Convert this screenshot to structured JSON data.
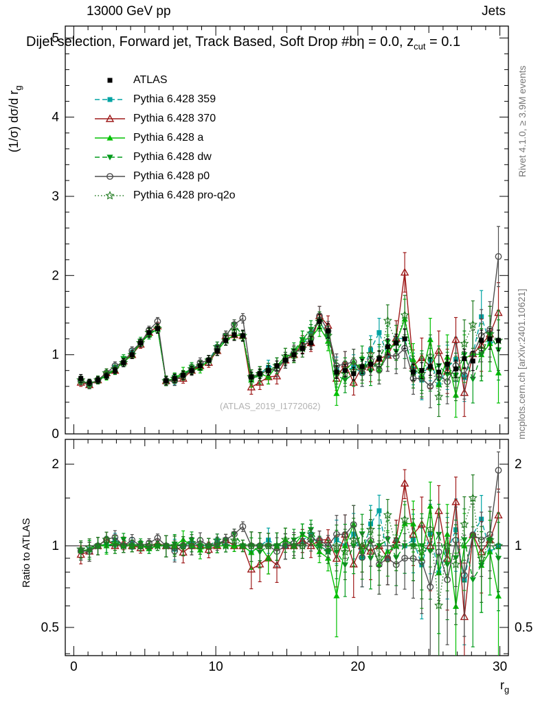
{
  "texts": {
    "beam": "13000 GeV pp",
    "process": "Jets",
    "title": "Dijet selection, Forward jet, Track Based, Soft Drop #bη = 0.0, z",
    "title_subscript": "cut",
    "title_after": " = 0.1",
    "watermark": "(ATLAS_2019_I1772062)",
    "rivet": "Rivet 4.1.0, ≥ 3.9M events",
    "mcplots": "mcplots.cern.ch [arXiv:2401.10621]",
    "ylabel_prefix": "(1/σ) dσ/d r",
    "ylabel_sub": "g",
    "ylabel_ratio": "Ratio to ATLAS",
    "xlabel": "r",
    "xlabel_sub": "g"
  },
  "chart_data": {
    "type": "line",
    "title": "Dijet selection, Forward jet, Track Based, Soft Drop beta = 0.0, zcut = 0.1",
    "xlabel": "rg",
    "ylabel": "(1/sigma) dsigma/d rg",
    "ratio_label": "Ratio to ATLAS",
    "legend_position": "top-left",
    "axes": {
      "x": {
        "min": -0.6,
        "max": 30.6,
        "major_ticks": [
          0,
          10,
          20,
          30
        ],
        "medium_every": 5,
        "minor_every": 1
      },
      "y_main": {
        "min": 0,
        "max": 5.15,
        "major_ticks": [
          0,
          1,
          2,
          3,
          4,
          5
        ],
        "minor_step": 0.2
      },
      "y_ratio": {
        "scale": "log",
        "major_ticks": [
          0.5,
          1,
          2
        ],
        "minor_ticks": [
          0.4,
          0.6,
          0.7,
          0.8,
          0.9,
          1.5
        ],
        "min": 0.38,
        "max": 2.47
      }
    },
    "x": [
      0.5,
      1.1,
      1.7,
      2.3,
      2.9,
      3.5,
      4.1,
      4.7,
      5.3,
      5.9,
      6.5,
      7.1,
      7.7,
      8.3,
      8.9,
      9.5,
      10.1,
      10.7,
      11.3,
      11.9,
      12.5,
      13.1,
      13.7,
      14.3,
      14.9,
      15.5,
      16.1,
      16.7,
      17.3,
      17.9,
      18.5,
      19.1,
      19.7,
      20.3,
      20.9,
      21.5,
      22.1,
      22.7,
      23.3,
      23.9,
      24.5,
      25.1,
      25.7,
      26.3,
      26.9,
      27.5,
      28.1,
      28.7,
      29.3,
      29.9
    ],
    "mc_err": [
      0.05,
      0.05,
      0.05,
      0.05,
      0.05,
      0.05,
      0.05,
      0.05,
      0.05,
      0.05,
      0.06,
      0.06,
      0.06,
      0.06,
      0.06,
      0.06,
      0.06,
      0.06,
      0.06,
      0.06,
      0.09,
      0.09,
      0.09,
      0.1,
      0.1,
      0.1,
      0.11,
      0.11,
      0.12,
      0.12,
      0.15,
      0.16,
      0.16,
      0.17,
      0.18,
      0.18,
      0.2,
      0.22,
      0.25,
      0.2,
      0.25,
      0.27,
      0.25,
      0.28,
      0.28,
      0.3,
      0.3,
      0.33,
      0.35,
      0.38
    ],
    "series": [
      {
        "key": "atlas",
        "name": "ATLAS",
        "color": "#000000",
        "marker": "square",
        "line": "none",
        "values": [
          0.7,
          0.65,
          0.68,
          0.73,
          0.8,
          0.9,
          1.0,
          1.15,
          1.28,
          1.33,
          0.67,
          0.7,
          0.74,
          0.8,
          0.86,
          0.93,
          1.05,
          1.18,
          1.25,
          1.24,
          0.72,
          0.76,
          0.8,
          0.86,
          0.93,
          1.0,
          1.08,
          1.15,
          1.42,
          1.3,
          0.78,
          0.8,
          0.76,
          0.85,
          0.88,
          0.95,
          1.1,
          1.15,
          1.2,
          0.78,
          0.8,
          0.85,
          0.78,
          0.88,
          0.82,
          0.95,
          0.92,
          1.18,
          1.2,
          1.18
        ],
        "err": [
          0.05,
          0.04,
          0.04,
          0.04,
          0.04,
          0.05,
          0.05,
          0.05,
          0.06,
          0.06,
          0.05,
          0.05,
          0.05,
          0.05,
          0.05,
          0.06,
          0.06,
          0.06,
          0.07,
          0.07,
          0.06,
          0.06,
          0.06,
          0.06,
          0.07,
          0.07,
          0.07,
          0.08,
          0.09,
          0.09,
          0.08,
          0.08,
          0.08,
          0.09,
          0.09,
          0.1,
          0.1,
          0.11,
          0.12,
          0.1,
          0.1,
          0.11,
          0.1,
          0.11,
          0.11,
          0.12,
          0.12,
          0.13,
          0.13,
          0.13
        ]
      },
      {
        "key": "py359",
        "name": "Pythia 6.428 359",
        "color": "#00a3a3",
        "marker": "square",
        "line": "dashed",
        "values": [
          0.67,
          0.63,
          0.68,
          0.74,
          0.84,
          0.9,
          1.02,
          1.15,
          1.25,
          1.33,
          0.67,
          0.68,
          0.74,
          0.82,
          0.86,
          0.93,
          1.1,
          1.18,
          1.25,
          1.24,
          0.68,
          0.76,
          0.84,
          0.86,
          0.93,
          1.0,
          1.13,
          1.27,
          1.42,
          1.24,
          0.82,
          0.8,
          0.84,
          0.77,
          1.06,
          1.28,
          0.99,
          1.21,
          1.2,
          0.82,
          0.68,
          0.94,
          0.62,
          0.84,
          0.94,
          0.71,
          1.01,
          1.48,
          1.14,
          1.18
        ]
      },
      {
        "key": "py370",
        "name": "Pythia 6.428 370",
        "color": "#9e1a1a",
        "marker": "triangle-up-open",
        "line": "solid",
        "values": [
          0.65,
          0.62,
          0.68,
          0.77,
          0.8,
          0.92,
          1.0,
          1.13,
          1.28,
          1.36,
          0.67,
          0.7,
          0.7,
          0.8,
          0.86,
          0.9,
          1.05,
          1.24,
          1.25,
          1.24,
          0.59,
          0.65,
          0.72,
          0.73,
          0.93,
          1.0,
          1.13,
          1.15,
          1.49,
          1.37,
          0.7,
          0.88,
          0.65,
          0.85,
          0.84,
          0.95,
          0.99,
          1.21,
          2.04,
          0.86,
          0.96,
          0.85,
          1.05,
          0.79,
          1.19,
          0.52,
          1.01,
          1.12,
          1.26,
          1.53
        ]
      },
      {
        "key": "pya",
        "name": "Pythia 6.428 a",
        "color": "#00c000",
        "marker": "triangle-up",
        "line": "solid",
        "values": [
          0.67,
          0.63,
          0.68,
          0.73,
          0.82,
          0.9,
          1.0,
          1.15,
          1.25,
          1.33,
          0.67,
          0.7,
          0.78,
          0.8,
          0.83,
          0.93,
          1.05,
          1.18,
          1.25,
          1.24,
          0.68,
          0.76,
          0.72,
          0.86,
          0.98,
          1.0,
          1.19,
          1.21,
          1.35,
          1.17,
          0.51,
          0.8,
          0.91,
          0.81,
          0.92,
          0.81,
          1.05,
          1.15,
          1.45,
          0.94,
          0.72,
          1.19,
          0.62,
          0.97,
          0.49,
          0.95,
          1.01,
          1.0,
          1.14,
          0.77
        ]
      },
      {
        "key": "pydw",
        "name": "Pythia 6.428 dw",
        "color": "#009a1a",
        "marker": "triangle-down",
        "line": "dashed",
        "values": [
          0.67,
          0.62,
          0.68,
          0.74,
          0.8,
          0.95,
          1.0,
          1.17,
          1.25,
          1.33,
          0.67,
          0.71,
          0.74,
          0.84,
          0.86,
          0.93,
          1.05,
          1.24,
          1.38,
          1.24,
          0.72,
          0.72,
          0.8,
          0.86,
          0.93,
          1.05,
          1.19,
          1.32,
          1.42,
          1.24,
          0.74,
          0.68,
          0.76,
          0.94,
          0.79,
          0.95,
          1.16,
          1.04,
          1.2,
          0.78,
          0.8,
          0.81,
          0.86,
          0.75,
          0.74,
          1.0,
          0.69,
          1.0,
          1.26,
          1.06
        ]
      },
      {
        "key": "pyp0",
        "name": "Pythia 6.428 p0",
        "color": "#4d4d4d",
        "marker": "circle-open",
        "line": "solid",
        "values": [
          0.67,
          0.62,
          0.68,
          0.77,
          0.86,
          0.9,
          1.05,
          1.15,
          1.31,
          1.42,
          0.67,
          0.67,
          0.74,
          0.8,
          0.9,
          0.93,
          1.07,
          1.24,
          1.38,
          1.46,
          0.72,
          0.76,
          0.8,
          0.82,
          0.93,
          1.02,
          1.08,
          1.21,
          1.49,
          1.3,
          0.86,
          0.88,
          0.91,
          0.77,
          0.92,
          0.81,
          0.99,
          0.98,
          1.08,
          0.7,
          0.7,
          0.6,
          0.74,
          0.66,
          0.86,
          0.74,
          1.01,
          1.24,
          1.32,
          2.24
        ]
      },
      {
        "key": "pyproq2o",
        "name": "Pythia 6.428 pro-q2o",
        "color": "#1f7a1f",
        "marker": "star-open",
        "line": "dotted",
        "values": [
          0.68,
          0.64,
          0.68,
          0.77,
          0.82,
          0.9,
          1.0,
          1.15,
          1.28,
          1.33,
          0.67,
          0.7,
          0.74,
          0.82,
          0.86,
          0.93,
          1.1,
          1.18,
          1.31,
          1.24,
          0.72,
          0.76,
          0.8,
          0.86,
          0.98,
          1.0,
          1.08,
          1.27,
          1.42,
          1.24,
          0.78,
          0.76,
          0.8,
          0.85,
          1.01,
          0.86,
          1.43,
          1.15,
          1.5,
          0.78,
          0.76,
          0.98,
          0.47,
          0.88,
          0.7,
          1.14,
          1.38,
          1.06,
          1.26,
          1.18
        ]
      }
    ]
  }
}
